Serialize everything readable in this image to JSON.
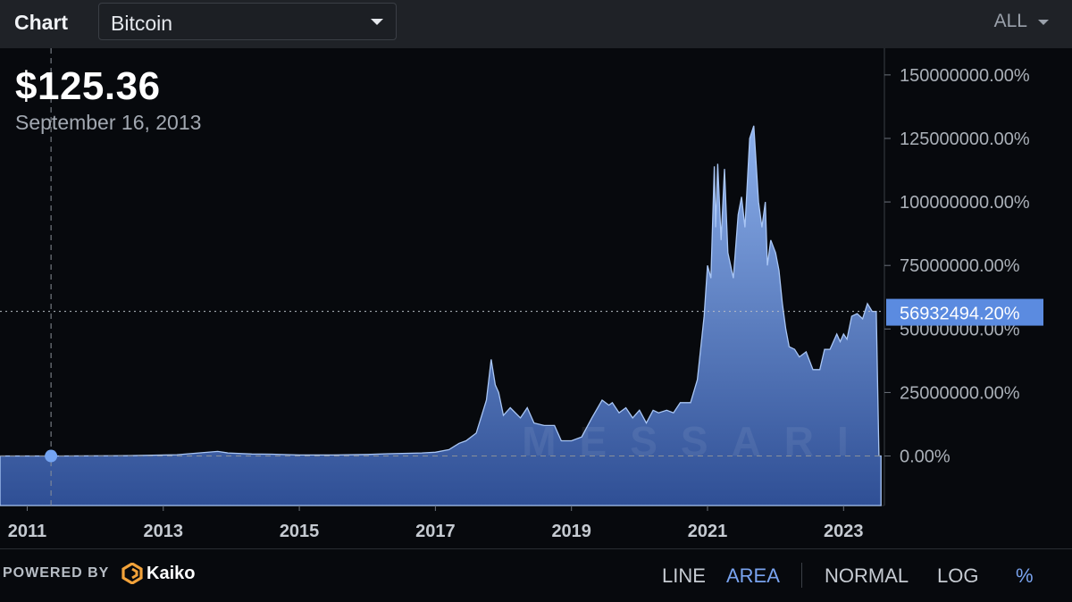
{
  "header": {
    "title": "Chart",
    "asset": "Bitcoin",
    "range": "ALL"
  },
  "readout": {
    "price": "$125.36",
    "date": "September 16, 2013"
  },
  "watermark": "MESSARI",
  "footer": {
    "powered_by": "POWERED BY",
    "provider": "Kaiko",
    "modes": {
      "line": "LINE",
      "area": "AREA",
      "normal": "NORMAL",
      "log": "LOG",
      "percent": "%"
    }
  },
  "colors": {
    "accent": "#79a3ef",
    "area_top": "#8cb0ec",
    "area_bottom": "#2f4f95",
    "marker": "#74a4f2",
    "badge": "#5b8be0"
  },
  "chart_data": {
    "type": "area",
    "ylabel_unit": "%",
    "x_ticks": [
      "2011",
      "2013",
      "2015",
      "2017",
      "2019",
      "2021",
      "2023"
    ],
    "y_ticks": [
      "150000000.00%",
      "125000000.00%",
      "100000000.00%",
      "75000000.00%",
      "50000000.00%",
      "25000000.00%",
      "0.00%"
    ],
    "y_tick_values": [
      150000000,
      125000000,
      100000000,
      75000000,
      50000000,
      25000000,
      0
    ],
    "xlim": [
      2010.6,
      2023.6
    ],
    "ylim": [
      -19500000,
      160500000
    ],
    "current_value_label": "56932494.20%",
    "current_value": 56932494.2,
    "crosshair": {
      "x": 2011.35,
      "y": 0
    },
    "x": [
      2010.6,
      2011.5,
      2012.5,
      2013.2,
      2013.8,
      2013.95,
      2014.3,
      2014.6,
      2015.0,
      2015.5,
      2016.0,
      2016.3,
      2016.8,
      2017.0,
      2017.2,
      2017.35,
      2017.45,
      2017.6,
      2017.75,
      2017.82,
      2017.88,
      2017.93,
      2018.0,
      2018.1,
      2018.25,
      2018.35,
      2018.45,
      2018.6,
      2018.75,
      2018.85,
      2018.95,
      2019.0,
      2019.15,
      2019.3,
      2019.45,
      2019.55,
      2019.6,
      2019.7,
      2019.8,
      2019.9,
      2020.0,
      2020.1,
      2020.2,
      2020.28,
      2020.4,
      2020.5,
      2020.6,
      2020.75,
      2020.85,
      2020.95,
      2021.0,
      2021.05,
      2021.1,
      2021.12,
      2021.15,
      2021.2,
      2021.25,
      2021.3,
      2021.38,
      2021.45,
      2021.5,
      2021.55,
      2021.62,
      2021.68,
      2021.75,
      2021.8,
      2021.85,
      2021.88,
      2021.93,
      2022.0,
      2022.05,
      2022.1,
      2022.15,
      2022.2,
      2022.28,
      2022.35,
      2022.45,
      2022.55,
      2022.65,
      2022.72,
      2022.8,
      2022.9,
      2022.95,
      2023.0,
      2023.05,
      2023.12,
      2023.2,
      2023.28,
      2023.35,
      2023.42,
      2023.48,
      2023.52,
      2023.55
    ],
    "values": [
      0,
      0,
      100000,
      500000,
      1800000,
      1200000,
      800000,
      700000,
      400000,
      400000,
      600000,
      900000,
      1200000,
      1500000,
      2500000,
      5000000,
      6000000,
      9000000,
      22000000,
      38000000,
      28000000,
      25000000,
      16000000,
      19000000,
      15000000,
      19000000,
      13000000,
      12000000,
      12000000,
      6000000,
      6000000,
      6000000,
      7500000,
      15000000,
      22000000,
      20000000,
      21000000,
      17000000,
      19000000,
      15000000,
      18000000,
      13000000,
      18000000,
      17000000,
      18000000,
      17000000,
      21000000,
      21000000,
      30000000,
      55000000,
      75000000,
      70000000,
      114000000,
      90000000,
      115000000,
      85000000,
      113000000,
      80000000,
      70000000,
      95000000,
      102000000,
      90000000,
      125000000,
      130000000,
      100000000,
      90000000,
      100000000,
      75000000,
      85000000,
      80000000,
      73000000,
      60000000,
      50000000,
      43000000,
      42000000,
      39000000,
      41000000,
      34000000,
      34000000,
      42000000,
      42000000,
      48000000,
      45000000,
      48000000,
      46000000,
      55000000,
      56000000,
      54000000,
      60000000,
      56932494.2,
      56932494.2,
      0,
      0
    ],
    "grid": false,
    "legend": "none"
  }
}
